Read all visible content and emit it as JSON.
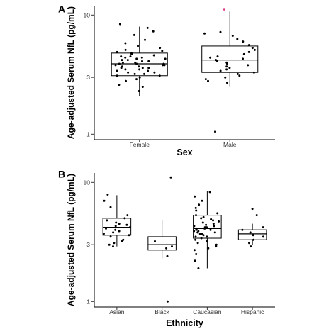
{
  "chart_data": [
    {
      "type": "box",
      "panel_label": "A",
      "ylabel": "Age-adjusted Serum NfL (pg/mL)",
      "xlabel": "Sex",
      "yscale": "log",
      "yticks": [
        1,
        3,
        10
      ],
      "ylim": [
        0.9,
        12
      ],
      "grid": false,
      "categories": [
        "Female",
        "Male"
      ],
      "boxes": [
        {
          "category": "Female",
          "whisker_low": 2.1,
          "q1": 3.1,
          "median": 3.9,
          "q3": 4.8,
          "whisker_high": 8.0
        },
        {
          "category": "Male",
          "whisker_low": 2.5,
          "q1": 3.3,
          "median": 4.2,
          "q3": 5.5,
          "whisker_high": 10.7
        }
      ],
      "points": [
        {
          "category": "Female",
          "values": [
            2.3,
            2.5,
            2.6,
            2.8,
            2.9,
            3.0,
            3.1,
            3.1,
            3.2,
            3.2,
            3.3,
            3.3,
            3.4,
            3.4,
            3.5,
            3.5,
            3.6,
            3.6,
            3.6,
            3.7,
            3.7,
            3.8,
            3.8,
            3.8,
            3.9,
            3.9,
            3.9,
            4.0,
            4.0,
            4.1,
            4.1,
            4.2,
            4.2,
            4.3,
            4.3,
            4.4,
            4.4,
            4.5,
            4.5,
            4.6,
            4.7,
            4.8,
            4.9,
            5.0,
            5.1,
            5.3,
            5.5,
            5.8,
            6.2,
            6.8,
            7.3,
            7.8,
            8.4
          ]
        },
        {
          "category": "Male",
          "values": [
            1.05,
            2.7,
            2.8,
            2.9,
            3.0,
            3.1,
            3.2,
            3.3,
            3.4,
            3.5,
            3.6,
            3.7,
            3.8,
            3.9,
            4.0,
            4.1,
            4.2,
            4.3,
            4.4,
            4.5,
            4.7,
            4.9,
            5.1,
            5.3,
            5.6,
            6.0,
            6.3,
            6.7,
            7.0,
            7.2
          ]
        }
      ],
      "outliers": [
        {
          "category": "Male",
          "value": 11.2,
          "color": "#e0408a"
        }
      ]
    },
    {
      "type": "box",
      "panel_label": "B",
      "ylabel": "Age-adjusted Serum NfL (pg/mL)",
      "xlabel": "Ethnicity",
      "yscale": "log",
      "yticks": [
        1,
        3,
        10
      ],
      "ylim": [
        0.9,
        12
      ],
      "grid": false,
      "categories": [
        "Asian",
        "Black",
        "Caucasian",
        "Hispanic"
      ],
      "boxes": [
        {
          "category": "Asian",
          "whisker_low": 2.9,
          "q1": 3.6,
          "median": 4.2,
          "q3": 5.0,
          "whisker_high": 7.8
        },
        {
          "category": "Black",
          "whisker_low": 2.3,
          "q1": 2.7,
          "median": 3.0,
          "q3": 3.5,
          "whisker_high": 4.8
        },
        {
          "category": "Caucasian",
          "whisker_low": 1.9,
          "q1": 3.4,
          "median": 4.1,
          "q3": 5.3,
          "whisker_high": 8.5
        },
        {
          "category": "Hispanic",
          "whisker_low": 3.0,
          "q1": 3.3,
          "median": 3.7,
          "q3": 4.0,
          "whisker_high": 4.5
        }
      ],
      "points": [
        {
          "category": "Asian",
          "values": [
            2.9,
            3.0,
            3.1,
            3.2,
            3.3,
            3.5,
            3.6,
            3.7,
            3.8,
            3.9,
            4.0,
            4.1,
            4.2,
            4.3,
            4.4,
            4.5,
            4.6,
            4.8,
            5.0,
            5.3,
            6.2,
            7.0,
            7.9
          ]
        },
        {
          "category": "Black",
          "values": [
            1.0,
            2.4,
            2.8,
            2.9,
            3.2,
            11.0
          ]
        },
        {
          "category": "Caucasian",
          "values": [
            1.9,
            2.2,
            2.5,
            2.7,
            2.8,
            2.9,
            3.0,
            3.1,
            3.2,
            3.3,
            3.4,
            3.5,
            3.5,
            3.6,
            3.7,
            3.7,
            3.8,
            3.8,
            3.9,
            3.9,
            4.0,
            4.0,
            4.1,
            4.1,
            4.2,
            4.2,
            4.3,
            4.3,
            4.4,
            4.5,
            4.6,
            4.7,
            4.8,
            4.9,
            5.0,
            5.1,
            5.3,
            5.5,
            5.8,
            6.1,
            6.5,
            7.0,
            7.6,
            8.3
          ]
        },
        {
          "category": "Hispanic",
          "values": [
            2.9,
            3.1,
            3.3,
            3.5,
            3.6,
            3.8,
            4.0,
            4.2,
            5.3,
            6.0
          ]
        }
      ],
      "outliers": []
    }
  ]
}
